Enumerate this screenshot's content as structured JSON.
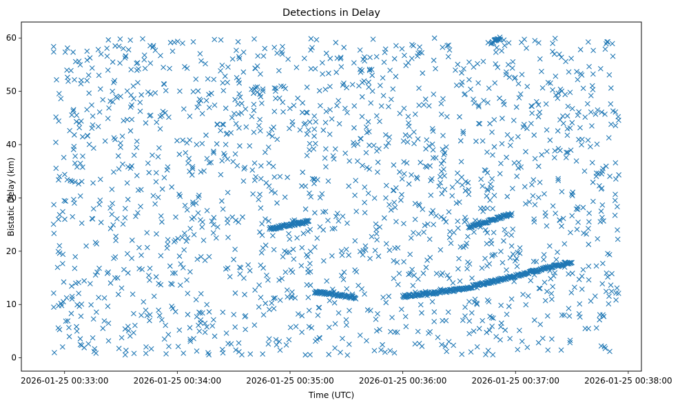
{
  "chart_data": {
    "type": "scatter",
    "title": "Detections in Delay",
    "xlabel": "Time (UTC)",
    "ylabel": "Bistatic Delay (km)",
    "x_unit": "time",
    "xlim": [
      "2026-01-25 00:32:37",
      "2026-01-25 00:38:07"
    ],
    "ylim": [
      -2.5,
      63
    ],
    "x_ticks": [
      "2026-01-25 00:33:00",
      "2026-01-25 00:34:00",
      "2026-01-25 00:35:00",
      "2026-01-25 00:36:00",
      "2026-01-25 00:37:00",
      "2026-01-25 00:38:00"
    ],
    "y_ticks": [
      0,
      10,
      20,
      30,
      40,
      50,
      60
    ],
    "grid": false,
    "marker": "x",
    "color": "#1f77b4",
    "noise": {
      "t_start": "2026-01-25 00:32:54",
      "t_end": "2026-01-25 00:37:55",
      "y_min": 0.5,
      "y_max": 60
    },
    "tracks": [
      {
        "t_start": "2026-01-25 00:34:49",
        "t_end": "2026-01-25 00:35:10",
        "y_start": 24.2,
        "y_end": 25.6
      },
      {
        "t_start": "2026-01-25 00:35:13",
        "t_end": "2026-01-25 00:35:35",
        "y_start": 12.4,
        "y_end": 11.3
      },
      {
        "t_start": "2026-01-25 00:36:00",
        "t_end": "2026-01-25 00:36:30",
        "y_start": 11.5,
        "y_end": 12.8
      },
      {
        "t_start": "2026-01-25 00:36:30",
        "t_end": "2026-01-25 00:37:30",
        "y_start": 12.8,
        "y_end": 18.0
      },
      {
        "t_start": "2026-01-25 00:36:35",
        "t_end": "2026-01-25 00:36:58",
        "y_start": 24.5,
        "y_end": 27.0
      },
      {
        "t_start": "2026-01-25 00:36:47",
        "t_end": "2026-01-25 00:36:52",
        "y_start": 59.0,
        "y_end": 60.0
      }
    ]
  }
}
